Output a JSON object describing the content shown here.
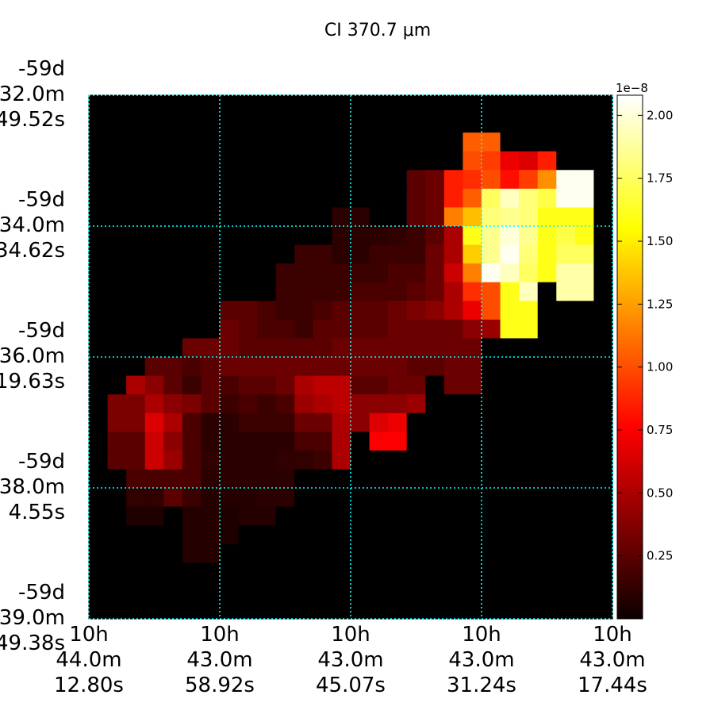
{
  "chart_data": {
    "type": "heatmap",
    "title": "CI 370.7 μm",
    "colormap": "hot",
    "grid": true,
    "grid_color": "#00ffff",
    "x_tick_labels": [
      [
        "10h",
        "44.0m",
        "12.80s"
      ],
      [
        "10h",
        "43.0m",
        "58.92s"
      ],
      [
        "10h",
        "43.0m",
        "45.07s"
      ],
      [
        "10h",
        "43.0m",
        "31.24s"
      ],
      [
        "10h",
        "43.0m",
        "17.44s"
      ]
    ],
    "y_tick_labels": [
      [
        "-59d",
        "32.0m",
        "49.52s"
      ],
      [
        "-59d",
        "34.0m",
        "34.62s"
      ],
      [
        "-59d",
        "36.0m",
        "19.63s"
      ],
      [
        "-59d",
        "38.0m",
        "4.55s"
      ],
      [
        "-59d",
        "39.0m",
        "49.38s"
      ]
    ],
    "colorbar": {
      "scale_label": "1e−8",
      "min": 0.0,
      "max": 2.08,
      "ticks": [
        0.25,
        0.5,
        0.75,
        1.0,
        1.25,
        1.5,
        1.75,
        2.0
      ],
      "tick_labels": [
        "0.25",
        "0.50",
        "0.75",
        "1.00",
        "1.25",
        "1.50",
        "1.75",
        "2.00"
      ]
    },
    "nrows": 28,
    "ncols": 28,
    "rows": [
      [
        0,
        0,
        0,
        0,
        0,
        0,
        0,
        0,
        0,
        0,
        0,
        0,
        0,
        0,
        0,
        0,
        0,
        0,
        0,
        0,
        0,
        0,
        0,
        0,
        0,
        0,
        0,
        0
      ],
      [
        0,
        0,
        0,
        0,
        0,
        0,
        0,
        0,
        0,
        0,
        0,
        0,
        0,
        0,
        0,
        0,
        0,
        0,
        0,
        0,
        0,
        0,
        0,
        0,
        0,
        0,
        0,
        0
      ],
      [
        0,
        0,
        0,
        0,
        0,
        0,
        0,
        0,
        0,
        0,
        0,
        0,
        0,
        0,
        0,
        0,
        0,
        0,
        0,
        0,
        1.05,
        1.05,
        0,
        0,
        0,
        0,
        0,
        0
      ],
      [
        0,
        0,
        0,
        0,
        0,
        0,
        0,
        0,
        0,
        0,
        0,
        0,
        0,
        0,
        0,
        0,
        0,
        0,
        0,
        0,
        1.0,
        0.95,
        0.7,
        0.65,
        0.85,
        0,
        0,
        0
      ],
      [
        0,
        0,
        0,
        0,
        0,
        0,
        0,
        0,
        0,
        0,
        0,
        0,
        0,
        0,
        0,
        0,
        0,
        0.25,
        0.3,
        0.85,
        0.9,
        1.0,
        0.8,
        0.95,
        1.2,
        2.05,
        2.05,
        0
      ],
      [
        0,
        0,
        0,
        0,
        0,
        0,
        0,
        0,
        0,
        0,
        0,
        0,
        0,
        0,
        0,
        0,
        0,
        0.25,
        0.3,
        0.85,
        1.05,
        1.75,
        1.95,
        1.8,
        1.7,
        2.05,
        2.05,
        0
      ],
      [
        0,
        0,
        0,
        0,
        0,
        0,
        0,
        0,
        0,
        0,
        0,
        0,
        0,
        0.1,
        0.1,
        0,
        0,
        0.25,
        0.3,
        1.15,
        1.35,
        1.8,
        1.85,
        1.8,
        1.6,
        1.6,
        1.6,
        0
      ],
      [
        0,
        0,
        0,
        0,
        0,
        0,
        0,
        0,
        0,
        0,
        0,
        0,
        0,
        0.1,
        0.1,
        0.1,
        0.12,
        0.15,
        0.25,
        0.5,
        1.6,
        1.85,
        2.0,
        1.85,
        1.6,
        1.7,
        1.6,
        0
      ],
      [
        0,
        0,
        0,
        0,
        0,
        0,
        0,
        0,
        0,
        0,
        0,
        0.15,
        0.15,
        0.1,
        0.1,
        0.15,
        0.15,
        0.15,
        0.3,
        0.5,
        1.4,
        1.85,
        2.05,
        1.8,
        1.6,
        1.75,
        1.75,
        0
      ],
      [
        0,
        0,
        0,
        0,
        0,
        0,
        0,
        0,
        0,
        0,
        0.15,
        0.15,
        0.15,
        0.15,
        0.15,
        0.15,
        0.2,
        0.2,
        0.3,
        0.6,
        1.15,
        2.05,
        1.95,
        1.75,
        1.6,
        1.9,
        1.9,
        0
      ],
      [
        0,
        0,
        0,
        0,
        0,
        0,
        0,
        0,
        0,
        0,
        0.15,
        0.15,
        0.15,
        0.15,
        0.2,
        0.2,
        0.2,
        0.25,
        0.3,
        0.5,
        0.9,
        1.0,
        1.6,
        1.95,
        0,
        1.9,
        1.9,
        0
      ],
      [
        0,
        0,
        0,
        0,
        0,
        0,
        0,
        0.25,
        0.25,
        0.2,
        0.15,
        0.15,
        0.2,
        0.25,
        0.25,
        0.25,
        0.3,
        0.35,
        0.4,
        0.5,
        0.7,
        1.0,
        1.6,
        1.6,
        0,
        0,
        0,
        0
      ],
      [
        0,
        0,
        0,
        0,
        0,
        0,
        0,
        0.3,
        0.25,
        0.2,
        0.2,
        0.15,
        0.25,
        0.25,
        0.25,
        0.25,
        0.3,
        0.3,
        0.3,
        0.3,
        0.4,
        0.45,
        1.6,
        1.6,
        0,
        0,
        0,
        0
      ],
      [
        0,
        0,
        0,
        0,
        0,
        0.3,
        0.3,
        0.3,
        0.25,
        0.25,
        0.25,
        0.25,
        0.25,
        0.3,
        0.3,
        0.3,
        0.3,
        0.3,
        0.3,
        0.3,
        0.3,
        0,
        0,
        0,
        0,
        0,
        0,
        0
      ],
      [
        0,
        0,
        0,
        0.25,
        0.25,
        0.2,
        0.25,
        0.3,
        0.3,
        0.3,
        0.3,
        0.3,
        0.3,
        0.3,
        0.3,
        0.3,
        0.3,
        0.25,
        0.25,
        0.3,
        0.3,
        0,
        0,
        0,
        0,
        0,
        0,
        0
      ],
      [
        0,
        0,
        0.5,
        0.4,
        0.25,
        0.15,
        0.25,
        0.2,
        0.25,
        0.25,
        0.3,
        0.5,
        0.55,
        0.55,
        0.25,
        0.25,
        0.3,
        0.3,
        0,
        0.3,
        0.3,
        0,
        0,
        0,
        0,
        0,
        0,
        0
      ],
      [
        0,
        0.35,
        0.35,
        0.5,
        0.4,
        0.35,
        0.25,
        0.15,
        0.2,
        0.15,
        0.2,
        0.45,
        0.5,
        0.55,
        0.4,
        0.4,
        0.4,
        0.45,
        0,
        0,
        0,
        0,
        0,
        0,
        0,
        0,
        0,
        0
      ],
      [
        0,
        0.35,
        0.35,
        0.65,
        0.5,
        0.2,
        0.1,
        0.1,
        0.15,
        0.15,
        0.15,
        0.3,
        0.3,
        0.5,
        0.4,
        0.65,
        0.7,
        0,
        0,
        0,
        0,
        0,
        0,
        0,
        0,
        0,
        0,
        0
      ],
      [
        0,
        0.25,
        0.25,
        0.6,
        0.4,
        0.2,
        0.1,
        0.1,
        0.1,
        0.1,
        0.1,
        0.2,
        0.2,
        0.5,
        0,
        0.75,
        0.75,
        0,
        0,
        0,
        0,
        0,
        0,
        0,
        0,
        0,
        0,
        0
      ],
      [
        0,
        0.25,
        0.25,
        0.6,
        0.45,
        0.2,
        0.12,
        0.1,
        0.1,
        0.1,
        0.12,
        0.12,
        0.15,
        0.5,
        0,
        0,
        0,
        0,
        0,
        0,
        0,
        0,
        0,
        0,
        0,
        0,
        0,
        0
      ],
      [
        0,
        0,
        0.2,
        0.2,
        0.2,
        0.2,
        0.1,
        0.1,
        0.1,
        0.1,
        0.1,
        0,
        0,
        0,
        0,
        0,
        0,
        0,
        0,
        0,
        0,
        0,
        0,
        0,
        0,
        0,
        0,
        0
      ],
      [
        0,
        0,
        0.12,
        0.12,
        0.25,
        0.15,
        0.08,
        0.08,
        0.08,
        0.1,
        0.1,
        0,
        0,
        0,
        0,
        0,
        0,
        0,
        0,
        0,
        0,
        0,
        0,
        0,
        0,
        0,
        0,
        0
      ],
      [
        0,
        0,
        0.06,
        0.06,
        0,
        0.08,
        0.08,
        0.06,
        0.08,
        0.08,
        0,
        0,
        0,
        0,
        0,
        0,
        0,
        0,
        0,
        0,
        0,
        0,
        0,
        0,
        0,
        0,
        0,
        0
      ],
      [
        0,
        0,
        0,
        0,
        0,
        0.08,
        0.08,
        0.06,
        0,
        0,
        0,
        0,
        0,
        0,
        0,
        0,
        0,
        0,
        0,
        0,
        0,
        0,
        0,
        0,
        0,
        0,
        0,
        0
      ],
      [
        0,
        0,
        0,
        0,
        0,
        0.08,
        0.08,
        0,
        0,
        0,
        0,
        0,
        0,
        0,
        0,
        0,
        0,
        0,
        0,
        0,
        0,
        0,
        0,
        0,
        0,
        0,
        0,
        0
      ],
      [
        0,
        0,
        0,
        0,
        0,
        0,
        0,
        0,
        0,
        0,
        0,
        0,
        0,
        0,
        0,
        0,
        0,
        0,
        0,
        0,
        0,
        0,
        0,
        0,
        0,
        0,
        0,
        0
      ],
      [
        0,
        0,
        0,
        0,
        0,
        0,
        0,
        0,
        0,
        0,
        0,
        0,
        0,
        0,
        0,
        0,
        0,
        0,
        0,
        0,
        0,
        0,
        0,
        0,
        0,
        0,
        0,
        0
      ],
      [
        0,
        0,
        0,
        0,
        0,
        0,
        0,
        0,
        0,
        0,
        0,
        0,
        0,
        0,
        0,
        0,
        0,
        0,
        0,
        0,
        0,
        0,
        0,
        0,
        0,
        0,
        0,
        0
      ]
    ]
  }
}
